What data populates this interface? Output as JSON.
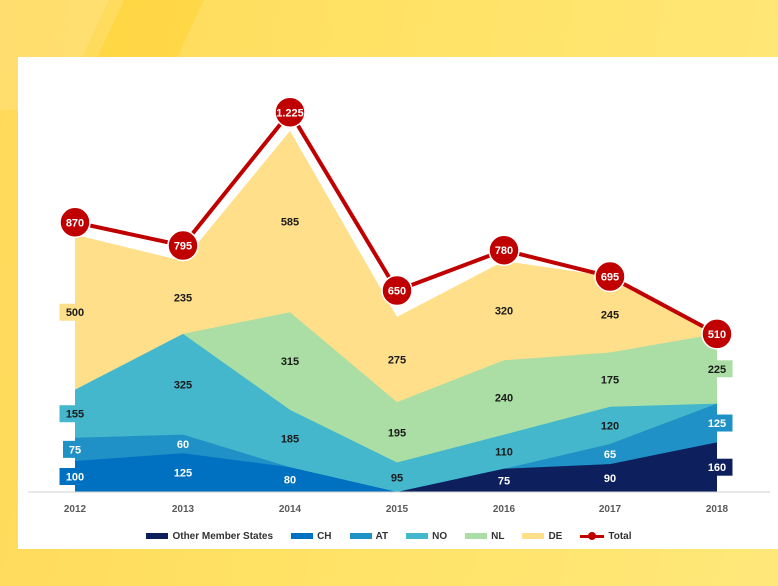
{
  "chart_data": {
    "type": "area",
    "stacked": true,
    "categories": [
      "2012",
      "2013",
      "2014",
      "2015",
      "2016",
      "2017",
      "2018"
    ],
    "series": [
      {
        "name": "Other Member States",
        "color": "#0d1f5c",
        "values": [
          null,
          null,
          null,
          null,
          75,
          90,
          160
        ]
      },
      {
        "name": "CH",
        "color": "#0070c0",
        "values": [
          100,
          125,
          80,
          null,
          null,
          null,
          null
        ]
      },
      {
        "name": "AT",
        "color": "#1f91c6",
        "values": [
          75,
          60,
          null,
          null,
          null,
          65,
          125
        ]
      },
      {
        "name": "NO",
        "color": "#44b7cc",
        "values": [
          155,
          325,
          185,
          95,
          110,
          120,
          null
        ]
      },
      {
        "name": "NL",
        "color": "#aadea4",
        "values": [
          null,
          null,
          315,
          195,
          240,
          175,
          225
        ]
      },
      {
        "name": "DE",
        "color": "#ffdf8a",
        "values": [
          500,
          235,
          585,
          275,
          320,
          245,
          null
        ]
      }
    ],
    "total": {
      "name": "Total",
      "color": "#c00000",
      "values": [
        870,
        795,
        1225,
        650,
        780,
        695,
        510
      ],
      "labels": [
        "870",
        "795",
        "1.225",
        "650",
        "780",
        "695",
        "510"
      ]
    },
    "legend_position": "bottom",
    "grid": false
  }
}
